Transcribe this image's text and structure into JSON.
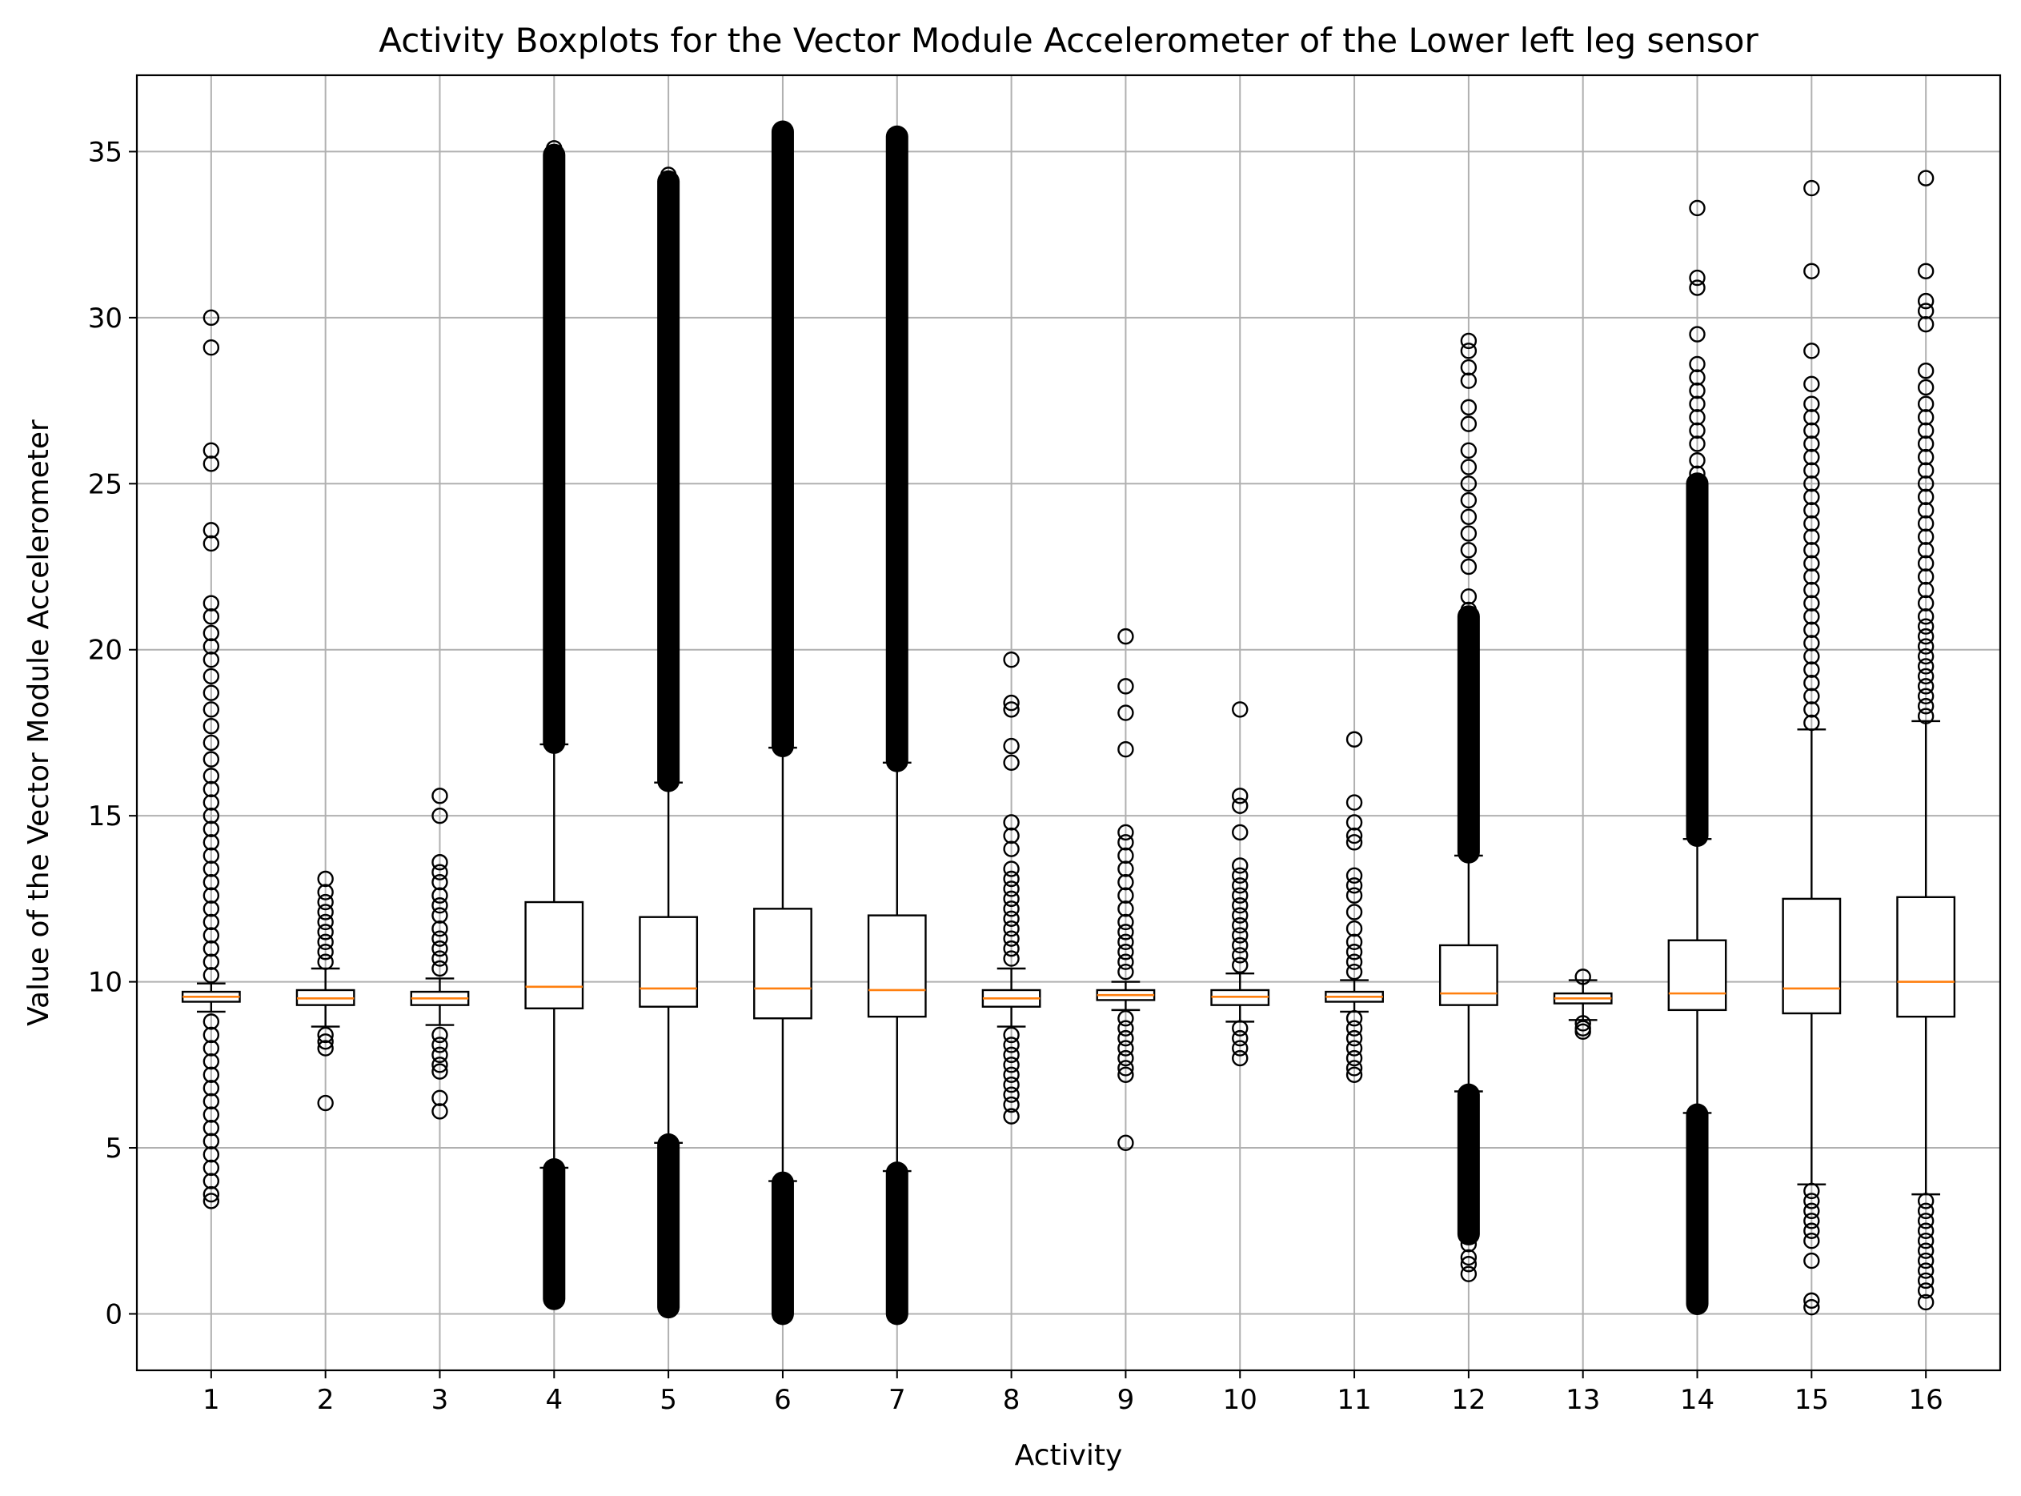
{
  "chart_data": {
    "type": "boxplot",
    "title": "Activity Boxplots for the Vector Module Accelerometer of the Lower left leg sensor",
    "xlabel": "Activity",
    "ylabel": "Value of the Vector Module Accelerometer",
    "categories": [
      "1",
      "2",
      "3",
      "4",
      "5",
      "6",
      "7",
      "8",
      "9",
      "10",
      "11",
      "12",
      "13",
      "14",
      "15",
      "16"
    ],
    "ylim": [
      -1.7,
      37.3
    ],
    "yticks": [
      0,
      5,
      10,
      15,
      20,
      25,
      30,
      35
    ],
    "grid": true,
    "colors": {
      "box": "#000000",
      "median": "#ff7f0e",
      "grid": "#b0b0b0",
      "flier": "#000000"
    },
    "boxes": [
      {
        "q1": 9.4,
        "median": 9.55,
        "q3": 9.7,
        "whislo": 9.1,
        "whishi": 9.95,
        "fliers_high": [
          10.2,
          10.6,
          11,
          11.4,
          11.8,
          12.2,
          12.6,
          13,
          13.4,
          13.8,
          14.2,
          14.6,
          15,
          15.4,
          15.8,
          16.2,
          16.7,
          17.2,
          17.7,
          18.2,
          18.7,
          19.2,
          19.7,
          20.1,
          20.5,
          21,
          21.4,
          23.2,
          23.6,
          25.6,
          26,
          29.1,
          30
        ],
        "fliers_low": [
          8.8,
          8.4,
          8,
          7.6,
          7.2,
          6.8,
          6.4,
          6,
          5.6,
          5.2,
          4.8,
          4.4,
          4,
          3.6,
          3.4
        ]
      },
      {
        "q1": 9.3,
        "median": 9.5,
        "q3": 9.75,
        "whislo": 8.65,
        "whishi": 10.4,
        "fliers_high": [
          10.6,
          10.9,
          11.2,
          11.5,
          11.8,
          12.1,
          12.4,
          12.7,
          13.1
        ],
        "fliers_low": [
          8.4,
          8.2,
          8,
          6.35
        ]
      },
      {
        "q1": 9.3,
        "median": 9.5,
        "q3": 9.7,
        "whislo": 8.7,
        "whishi": 10.1,
        "fliers_high": [
          10.4,
          10.7,
          11,
          11.3,
          11.6,
          12,
          12.3,
          12.6,
          13,
          13.3,
          13.6,
          15,
          15.6
        ],
        "fliers_low": [
          8.4,
          8.1,
          7.8,
          7.5,
          7.3,
          6.5,
          6.1
        ]
      },
      {
        "q1": 9.2,
        "median": 9.85,
        "q3": 12.4,
        "whislo": 4.4,
        "whishi": 17.15,
        "fliers_high": [
          35.1
        ],
        "fliers_low": [],
        "flier_band_high": [
          17.2,
          34.9
        ],
        "flier_band_low": [
          0.45,
          4.35
        ]
      },
      {
        "q1": 9.25,
        "median": 9.8,
        "q3": 11.95,
        "whislo": 5.15,
        "whishi": 16.0,
        "fliers_high": [
          34.3
        ],
        "fliers_low": [],
        "flier_band_high": [
          16.05,
          34.1
        ],
        "flier_band_low": [
          0.2,
          5.1
        ]
      },
      {
        "q1": 8.9,
        "median": 9.8,
        "q3": 12.2,
        "whislo": 4.0,
        "whishi": 17.05,
        "fliers_high": [],
        "fliers_low": [],
        "flier_band_high": [
          17.1,
          35.6
        ],
        "flier_band_low": [
          0.0,
          3.95
        ]
      },
      {
        "q1": 8.95,
        "median": 9.75,
        "q3": 12.0,
        "whislo": 4.3,
        "whishi": 16.6,
        "fliers_high": [],
        "fliers_low": [],
        "flier_band_high": [
          16.65,
          35.45
        ],
        "flier_band_low": [
          0.0,
          4.25
        ]
      },
      {
        "q1": 9.25,
        "median": 9.5,
        "q3": 9.75,
        "whislo": 8.65,
        "whishi": 10.4,
        "fliers_high": [
          10.7,
          11,
          11.3,
          11.6,
          11.9,
          12.2,
          12.5,
          12.8,
          13.1,
          13.4,
          14,
          14.4,
          14.8,
          16.6,
          17.1,
          18.2,
          18.4,
          19.7
        ],
        "fliers_low": [
          8.4,
          8.1,
          7.8,
          7.5,
          7.2,
          6.9,
          6.6,
          6.3,
          5.95
        ]
      },
      {
        "q1": 9.45,
        "median": 9.6,
        "q3": 9.75,
        "whislo": 9.15,
        "whishi": 10.0,
        "fliers_high": [
          10.3,
          10.6,
          10.9,
          11.2,
          11.5,
          11.8,
          12.2,
          12.6,
          13,
          13.4,
          13.8,
          14.2,
          14.5,
          17,
          18.1,
          18.9,
          20.4
        ],
        "fliers_low": [
          8.9,
          8.6,
          8.3,
          8,
          7.7,
          7.4,
          7.2,
          5.15
        ]
      },
      {
        "q1": 9.3,
        "median": 9.55,
        "q3": 9.75,
        "whislo": 8.8,
        "whishi": 10.25,
        "fliers_high": [
          10.5,
          10.8,
          11.1,
          11.4,
          11.7,
          12,
          12.3,
          12.6,
          12.9,
          13.2,
          13.5,
          14.5,
          15.3,
          15.6,
          18.2
        ],
        "fliers_low": [
          8.6,
          8.3,
          8,
          7.7
        ]
      },
      {
        "q1": 9.4,
        "median": 9.55,
        "q3": 9.7,
        "whislo": 9.1,
        "whishi": 10.05,
        "fliers_high": [
          10.3,
          10.6,
          10.9,
          11.2,
          11.6,
          12.1,
          12.6,
          12.9,
          13.2,
          14.2,
          14.4,
          14.8,
          15.4,
          17.3
        ],
        "fliers_low": [
          8.9,
          8.6,
          8.3,
          8,
          7.7,
          7.4,
          7.2
        ]
      },
      {
        "q1": 9.3,
        "median": 9.65,
        "q3": 11.1,
        "whislo": 6.7,
        "whishi": 13.8,
        "fliers_high": [
          21.2,
          21.6,
          22.5,
          23,
          23.5,
          24,
          24.5,
          25,
          25.5,
          26,
          26.8,
          27.3,
          28.1,
          28.5,
          29,
          29.3
        ],
        "fliers_low": [
          2.1,
          1.7,
          1.5,
          1.2
        ],
        "flier_band_high": [
          13.9,
          21.0
        ],
        "flier_band_low": [
          2.4,
          6.6
        ]
      },
      {
        "q1": 9.35,
        "median": 9.5,
        "q3": 9.65,
        "whislo": 8.85,
        "whishi": 10.05,
        "fliers_high": [
          10.15
        ],
        "fliers_low": [
          8.75,
          8.6,
          8.5
        ]
      },
      {
        "q1": 9.15,
        "median": 9.65,
        "q3": 11.25,
        "whislo": 6.05,
        "whishi": 14.3,
        "fliers_high": [
          25.3,
          25.7,
          26.2,
          26.6,
          27,
          27.4,
          27.8,
          28.2,
          28.6,
          29.5,
          30.9,
          31.2,
          33.3
        ],
        "fliers_low": [],
        "flier_band_high": [
          14.4,
          25.0
        ],
        "flier_band_low": [
          0.3,
          6.0
        ]
      },
      {
        "q1": 9.05,
        "median": 9.8,
        "q3": 12.5,
        "whislo": 3.9,
        "whishi": 17.6,
        "fliers_high": [
          17.8,
          18.2,
          18.6,
          19,
          19.4,
          19.8,
          20.2,
          20.6,
          21,
          21.4,
          21.8,
          22.2,
          22.6,
          23,
          23.4,
          23.8,
          24.2,
          24.6,
          25,
          25.4,
          25.8,
          26.2,
          26.6,
          27,
          27.4,
          28,
          29,
          31.4,
          33.9
        ],
        "fliers_low": [
          3.7,
          3.4,
          3.1,
          2.8,
          2.5,
          2.2,
          1.6,
          0.4,
          0.2
        ]
      },
      {
        "q1": 8.95,
        "median": 10.0,
        "q3": 12.55,
        "whislo": 3.6,
        "whishi": 17.85,
        "fliers_high": [
          18,
          18.3,
          18.6,
          18.9,
          19.2,
          19.5,
          19.8,
          20.1,
          20.4,
          20.7,
          21,
          21.4,
          21.8,
          22.2,
          22.6,
          23,
          23.4,
          23.8,
          24.2,
          24.6,
          25,
          25.4,
          25.8,
          26.2,
          26.6,
          27,
          27.4,
          27.9,
          28.4,
          29.8,
          30.2,
          30.5,
          31.4,
          34.2
        ],
        "fliers_low": [
          3.4,
          3.1,
          2.8,
          2.5,
          2.2,
          1.9,
          1.6,
          1.3,
          1.0,
          0.7,
          0.35
        ]
      }
    ]
  }
}
